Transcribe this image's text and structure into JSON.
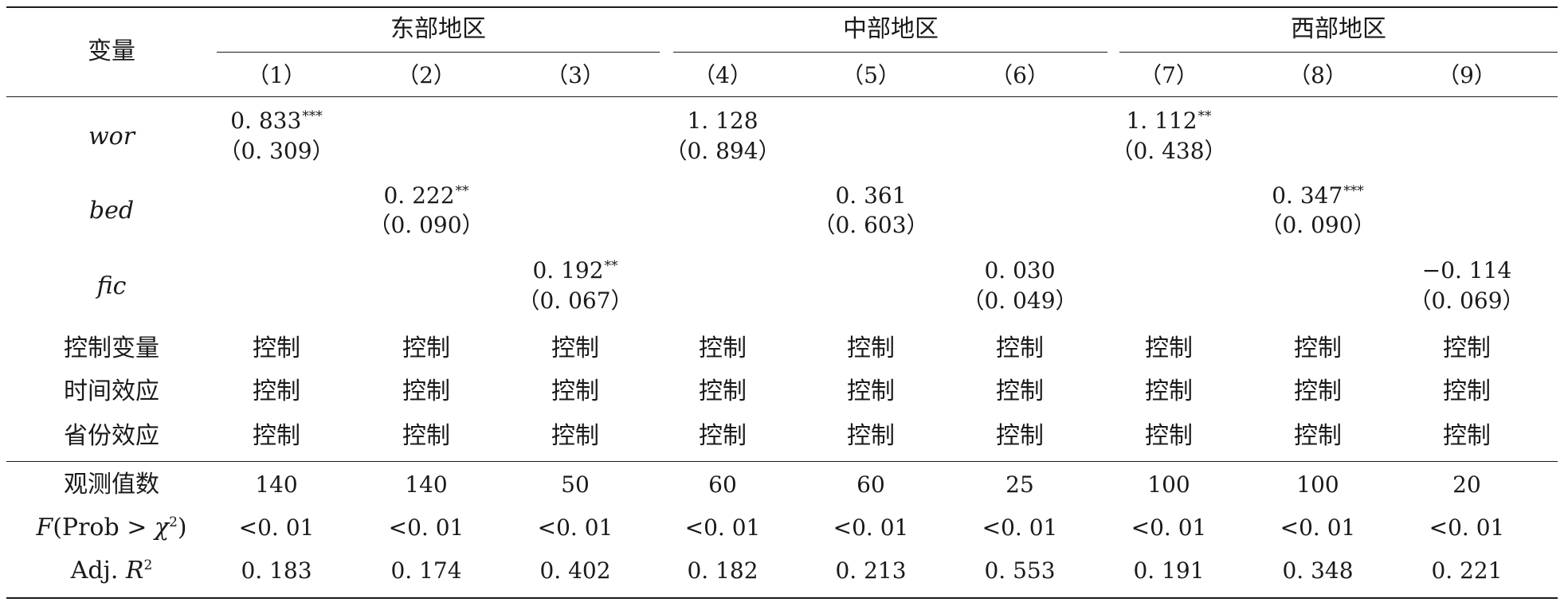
{
  "header": {
    "variable_label": "变量",
    "regions": [
      "东部地区",
      "中部地区",
      "西部地区"
    ],
    "columns": [
      "（1）",
      "（2）",
      "（3）",
      "（4）",
      "（5）",
      "（6）",
      "（7）",
      "（8）",
      "（9）"
    ]
  },
  "coefficients": [
    {
      "name": "wor",
      "values": [
        {
          "col": 1,
          "coef": "0. 833",
          "stars": "***",
          "se": "（0. 309）"
        },
        {
          "col": 4,
          "coef": "1. 128",
          "stars": "",
          "se": "（0. 894）"
        },
        {
          "col": 7,
          "coef": "1. 112",
          "stars": "**",
          "se": "（0. 438）"
        }
      ]
    },
    {
      "name": "bed",
      "values": [
        {
          "col": 2,
          "coef": "0. 222",
          "stars": "**",
          "se": "（0. 090）"
        },
        {
          "col": 5,
          "coef": "0. 361",
          "stars": "",
          "se": "（0. 603）"
        },
        {
          "col": 8,
          "coef": "0. 347",
          "stars": "***",
          "se": "（0. 090）"
        }
      ]
    },
    {
      "name": "fic",
      "values": [
        {
          "col": 3,
          "coef": "0. 192",
          "stars": "**",
          "se": "（0. 067）"
        },
        {
          "col": 6,
          "coef": "0. 030",
          "stars": "",
          "se": "（0. 049）"
        },
        {
          "col": 9,
          "coef": "−0. 114",
          "stars": "",
          "se": "（0. 069）"
        }
      ]
    }
  ],
  "control_rows": [
    {
      "label": "控制变量",
      "values": [
        "控制",
        "控制",
        "控制",
        "控制",
        "控制",
        "控制",
        "控制",
        "控制",
        "控制"
      ]
    },
    {
      "label": "时间效应",
      "values": [
        "控制",
        "控制",
        "控制",
        "控制",
        "控制",
        "控制",
        "控制",
        "控制",
        "控制"
      ]
    },
    {
      "label": "省份效应",
      "values": [
        "控制",
        "控制",
        "控制",
        "控制",
        "控制",
        "控制",
        "控制",
        "控制",
        "控制"
      ]
    }
  ],
  "stat_rows": [
    {
      "label": "观测值数",
      "values": [
        "140",
        "140",
        "50",
        "60",
        "60",
        "25",
        "100",
        "100",
        "20"
      ]
    },
    {
      "label_parts": {
        "f": "F",
        "open": "(Prob > ",
        "chi": "χ",
        "sup": "2",
        "close": ")"
      },
      "values": [
        "<0. 01",
        "<0. 01",
        "<0. 01",
        "<0. 01",
        "<0. 01",
        "<0. 01",
        "<0. 01",
        "<0. 01",
        "<0. 01"
      ]
    },
    {
      "label_parts": {
        "prefix": "Adj. ",
        "r": "R",
        "sup": "2"
      },
      "values": [
        "0. 183",
        "0. 174",
        "0. 402",
        "0. 182",
        "0. 213",
        "0. 553",
        "0. 191",
        "0. 348",
        "0. 221"
      ]
    }
  ]
}
